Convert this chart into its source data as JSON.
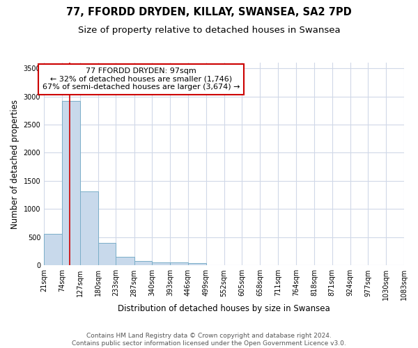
{
  "title": "77, FFORDD DRYDEN, KILLAY, SWANSEA, SA2 7PD",
  "subtitle": "Size of property relative to detached houses in Swansea",
  "xlabel": "Distribution of detached houses by size in Swansea",
  "ylabel": "Number of detached properties",
  "footer_line1": "Contains HM Land Registry data © Crown copyright and database right 2024.",
  "footer_line2": "Contains public sector information licensed under the Open Government Licence v3.0.",
  "bin_edges": [
    21,
    74,
    127,
    180,
    233,
    287,
    340,
    393,
    446,
    499,
    552,
    605,
    658,
    711,
    764,
    818,
    871,
    924,
    977,
    1030,
    1083
  ],
  "bar_heights": [
    560,
    2920,
    1310,
    400,
    155,
    80,
    55,
    50,
    45,
    0,
    0,
    0,
    0,
    0,
    0,
    0,
    0,
    0,
    0,
    0
  ],
  "bar_color": "#c8d9eb",
  "bar_edge_color": "#7aaec8",
  "property_size": 97,
  "property_label": "77 FFORDD DRYDEN: 97sqm",
  "smaller_pct": "32%",
  "smaller_count": "1,746",
  "larger_pct": "67%",
  "larger_count": "3,674",
  "vline_color": "#cc0000",
  "annotation_box_color": "#cc0000",
  "ylim": [
    0,
    3600
  ],
  "yticks": [
    0,
    500,
    1000,
    1500,
    2000,
    2500,
    3000,
    3500
  ],
  "background_color": "#ffffff",
  "grid_color": "#d0d8e8",
  "title_fontsize": 10.5,
  "subtitle_fontsize": 9.5,
  "axis_label_fontsize": 8.5,
  "tick_fontsize": 7,
  "footer_fontsize": 6.5,
  "annotation_fontsize": 8
}
